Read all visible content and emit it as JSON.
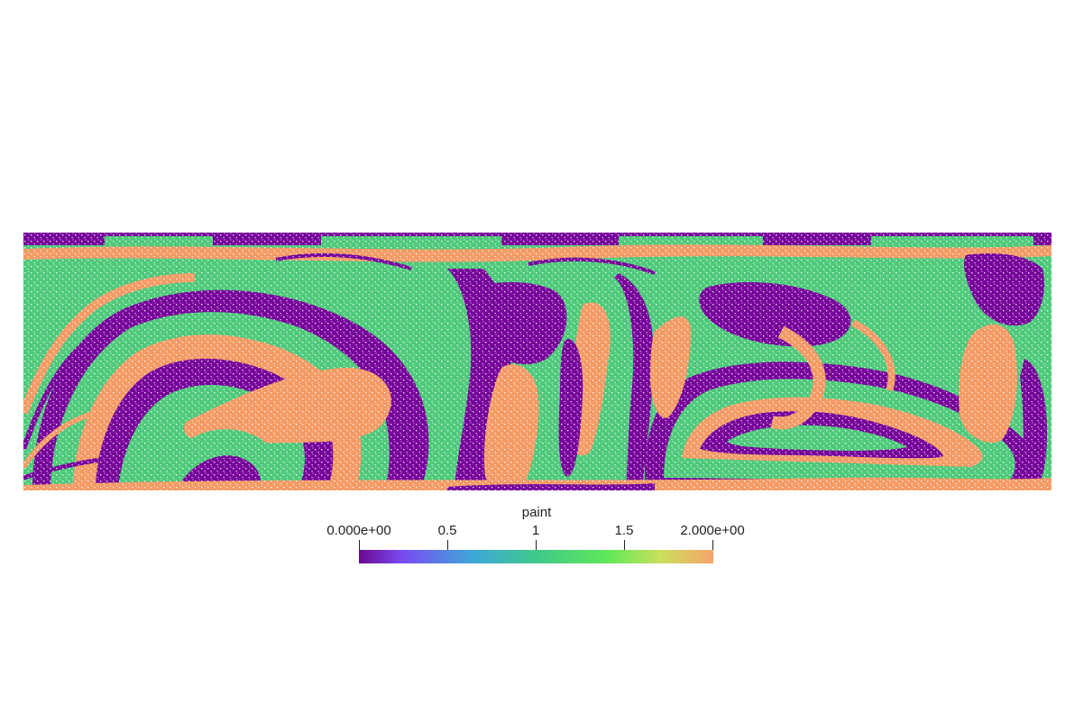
{
  "scene": {
    "colors": {
      "purple": "#76049a",
      "green": "#4dc97a",
      "orange": "#f49a64",
      "background": "#ffffff"
    }
  },
  "legend": {
    "title": "paint",
    "ticks": [
      {
        "label": "0.000e+00",
        "value": 0
      },
      {
        "label": "0.5",
        "value": 0.5
      },
      {
        "label": "1",
        "value": 1
      },
      {
        "label": "1.5",
        "value": 1.5
      },
      {
        "label": "2.000e+00",
        "value": 2
      }
    ],
    "range": [
      0,
      2
    ],
    "colormap": [
      "#6a0a8f",
      "#7a49f2",
      "#3ea7d9",
      "#3fc98a",
      "#5fe85a",
      "#c8e05c",
      "#f7a46a"
    ]
  }
}
